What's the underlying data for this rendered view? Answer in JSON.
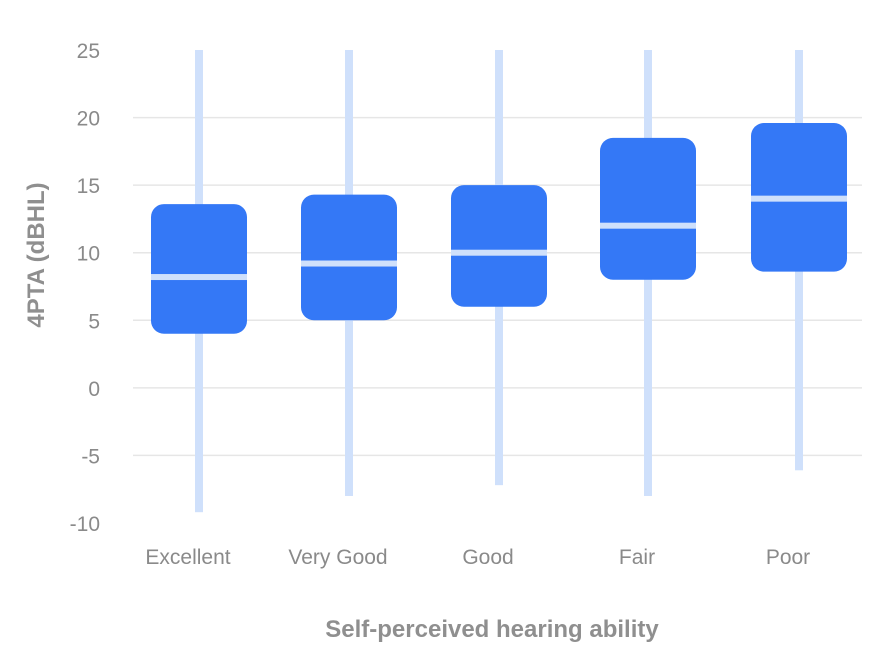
{
  "chart_data": {
    "type": "box",
    "title": "",
    "xlabel": "Self-perceived hearing ability",
    "ylabel": "4PTA (dBHL)",
    "ylim": [
      -10,
      25
    ],
    "yticks": [
      25,
      20,
      15,
      10,
      5,
      0,
      -5,
      -10
    ],
    "grid": true,
    "categories": [
      "Excellent",
      "Very Good",
      "Good",
      "Fair",
      "Poor"
    ],
    "boxes": [
      {
        "category": "Excellent",
        "whisker_low": -9.2,
        "q1": 4.0,
        "median": 8.2,
        "q3": 13.6,
        "whisker_high": 25.0
      },
      {
        "category": "Very Good",
        "whisker_low": -8.0,
        "q1": 5.0,
        "median": 9.2,
        "q3": 14.3,
        "whisker_high": 25.0
      },
      {
        "category": "Good",
        "whisker_low": -7.2,
        "q1": 6.0,
        "median": 10.0,
        "q3": 15.0,
        "whisker_high": 25.0
      },
      {
        "category": "Fair",
        "whisker_low": -8.0,
        "q1": 8.0,
        "median": 12.0,
        "q3": 18.5,
        "whisker_high": 25.0
      },
      {
        "category": "Poor",
        "whisker_low": -6.1,
        "q1": 8.6,
        "median": 14.0,
        "q3": 19.6,
        "whisker_high": 25.0
      }
    ],
    "colors": {
      "box": "#3478f6",
      "whisker": "#cfe0fb",
      "median": "#cfe0fb",
      "grid": "#e6e6e6",
      "tick_text": "#8a8a8a",
      "axis_title": "#8f8f8f"
    }
  }
}
